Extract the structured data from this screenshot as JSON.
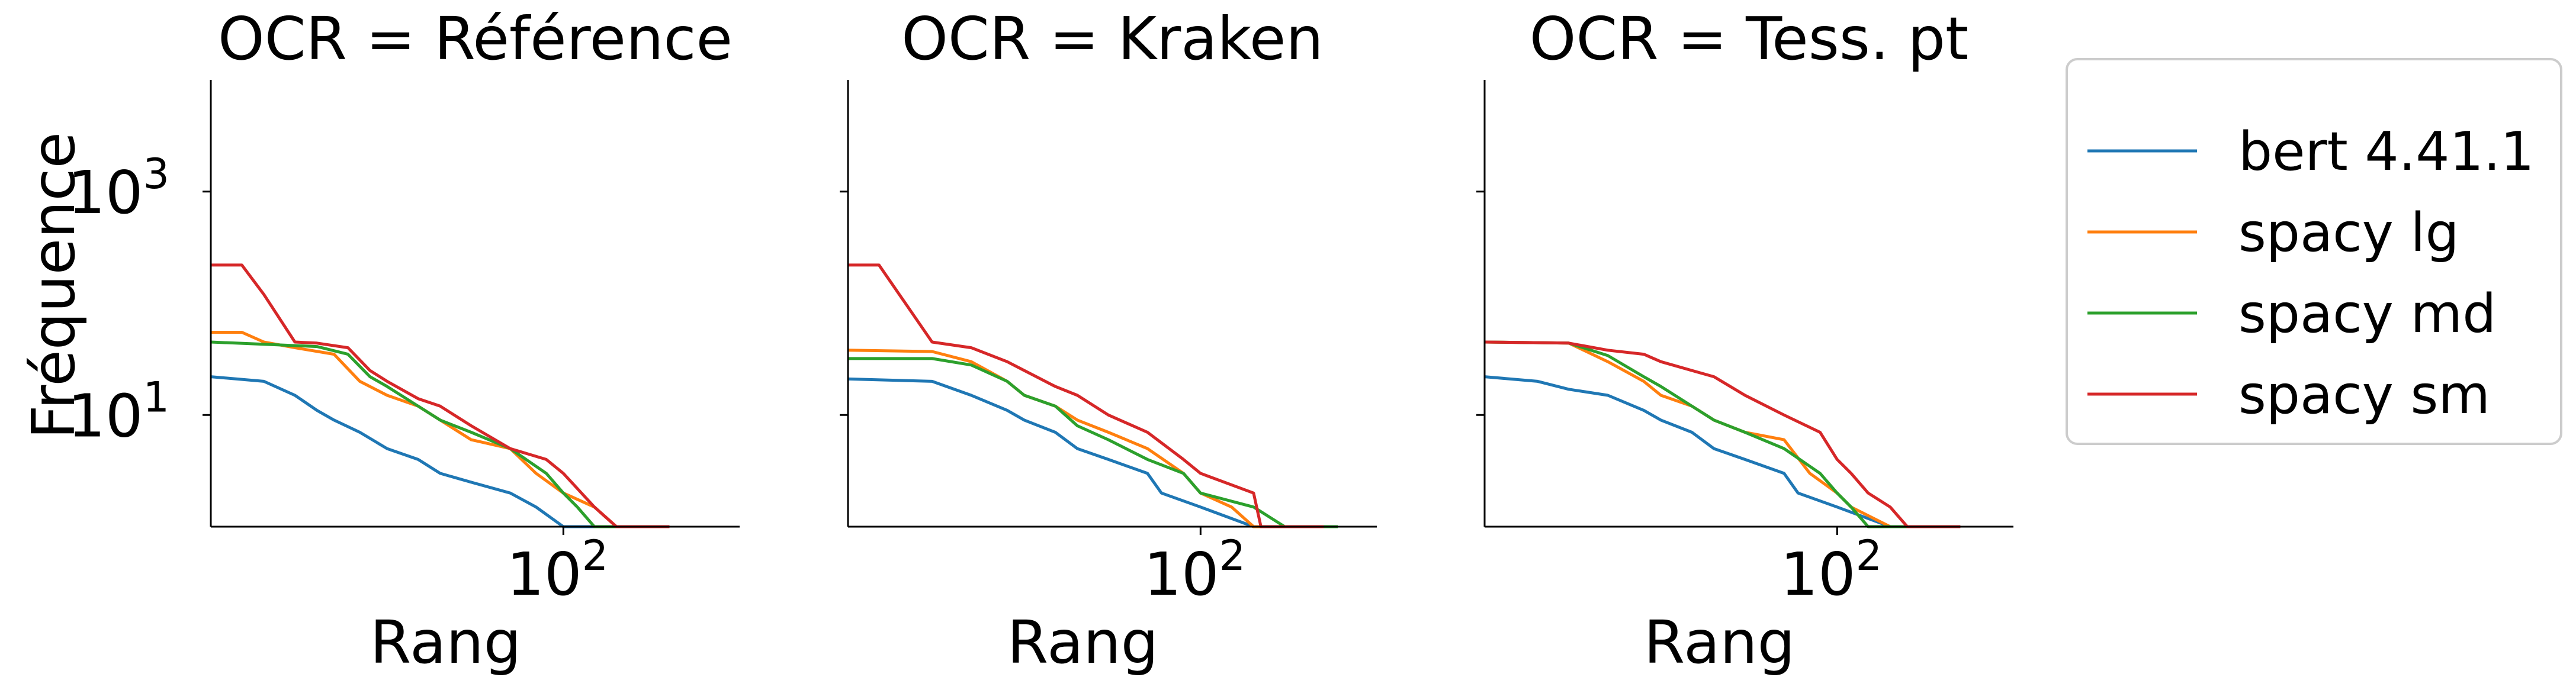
{
  "chart_data": [
    {
      "type": "line",
      "title": "OCR = Référence",
      "xlabel": "Rang",
      "ylabel": "Fréquence",
      "xscale": "log",
      "yscale": "log",
      "xlim": [
        1,
        1000
      ],
      "ylim": [
        1,
        10000
      ],
      "xticks": [
        {
          "base": "10",
          "exp": "2",
          "value": 100
        }
      ],
      "yticks": [
        {
          "base": "10",
          "exp": "3",
          "value": 1000
        },
        {
          "base": "10",
          "exp": "1",
          "value": 10
        }
      ],
      "series": [
        {
          "name": "bert 4.41.1",
          "color": "#1f77b4",
          "points": [
            [
              1,
              22
            ],
            [
              2,
              20
            ],
            [
              3,
              15
            ],
            [
              4,
              11
            ],
            [
              5,
              9
            ],
            [
              7,
              7
            ],
            [
              10,
              5
            ],
            [
              15,
              4
            ],
            [
              20,
              3
            ],
            [
              30,
              2.5
            ],
            [
              50,
              2
            ],
            [
              70,
              1.5
            ],
            [
              100,
              1
            ],
            [
              200,
              1
            ],
            [
              300,
              1
            ]
          ]
        },
        {
          "name": "spacy lg",
          "color": "#ff7f0e",
          "points": [
            [
              1,
              55
            ],
            [
              1.5,
              55
            ],
            [
              2,
              45
            ],
            [
              3,
              40
            ],
            [
              5,
              35
            ],
            [
              7,
              20
            ],
            [
              10,
              15
            ],
            [
              15,
              12
            ],
            [
              20,
              9
            ],
            [
              30,
              6
            ],
            [
              50,
              5
            ],
            [
              70,
              3
            ],
            [
              100,
              2
            ],
            [
              150,
              1.5
            ],
            [
              200,
              1
            ],
            [
              400,
              1
            ]
          ]
        },
        {
          "name": "spacy md",
          "color": "#2ca02c",
          "points": [
            [
              1,
              45
            ],
            [
              2,
              43
            ],
            [
              4,
              41
            ],
            [
              6,
              35
            ],
            [
              8,
              22
            ],
            [
              10,
              18
            ],
            [
              15,
              12
            ],
            [
              20,
              9
            ],
            [
              30,
              7
            ],
            [
              50,
              5
            ],
            [
              80,
              3
            ],
            [
              100,
              2
            ],
            [
              120,
              1.5
            ],
            [
              150,
              1
            ],
            [
              400,
              1
            ]
          ]
        },
        {
          "name": "spacy sm",
          "color": "#d62728",
          "points": [
            [
              1,
              220
            ],
            [
              1.5,
              220
            ],
            [
              2,
              120
            ],
            [
              3,
              45
            ],
            [
              4,
              44
            ],
            [
              6,
              40
            ],
            [
              8,
              25
            ],
            [
              10,
              20
            ],
            [
              15,
              14
            ],
            [
              20,
              12
            ],
            [
              30,
              8
            ],
            [
              50,
              5
            ],
            [
              80,
              4
            ],
            [
              100,
              3
            ],
            [
              150,
              1.5
            ],
            [
              200,
              1
            ],
            [
              400,
              1
            ]
          ]
        }
      ]
    },
    {
      "type": "line",
      "title": "OCR = Kraken",
      "xlabel": "Rang",
      "ylabel": "",
      "xscale": "log",
      "yscale": "log",
      "xlim": [
        1,
        1000
      ],
      "ylim": [
        1,
        10000
      ],
      "xticks": [
        {
          "base": "10",
          "exp": "2",
          "value": 100
        }
      ],
      "yticks": [],
      "series": [
        {
          "name": "bert 4.41.1",
          "color": "#1f77b4",
          "points": [
            [
              1,
              21
            ],
            [
              3,
              20
            ],
            [
              5,
              15
            ],
            [
              8,
              11
            ],
            [
              10,
              9
            ],
            [
              15,
              7
            ],
            [
              20,
              5
            ],
            [
              30,
              4
            ],
            [
              50,
              3
            ],
            [
              60,
              2
            ],
            [
              100,
              1.5
            ],
            [
              200,
              1
            ],
            [
              400,
              1
            ]
          ]
        },
        {
          "name": "spacy lg",
          "color": "#ff7f0e",
          "points": [
            [
              1,
              38
            ],
            [
              3,
              37
            ],
            [
              5,
              30
            ],
            [
              8,
              20
            ],
            [
              10,
              15
            ],
            [
              15,
              12
            ],
            [
              20,
              9
            ],
            [
              30,
              7
            ],
            [
              50,
              5
            ],
            [
              80,
              3
            ],
            [
              100,
              2
            ],
            [
              150,
              1.5
            ],
            [
              200,
              1
            ],
            [
              600,
              1
            ]
          ]
        },
        {
          "name": "spacy md",
          "color": "#2ca02c",
          "points": [
            [
              1,
              32
            ],
            [
              3,
              32
            ],
            [
              5,
              28
            ],
            [
              8,
              20
            ],
            [
              10,
              15
            ],
            [
              15,
              12
            ],
            [
              20,
              8
            ],
            [
              30,
              6
            ],
            [
              50,
              4
            ],
            [
              80,
              3
            ],
            [
              100,
              2
            ],
            [
              200,
              1.5
            ],
            [
              300,
              1
            ],
            [
              600,
              1
            ]
          ]
        },
        {
          "name": "spacy sm",
          "color": "#d62728",
          "points": [
            [
              1,
              220
            ],
            [
              1.5,
              220
            ],
            [
              3,
              45
            ],
            [
              5,
              40
            ],
            [
              8,
              30
            ],
            [
              10,
              25
            ],
            [
              15,
              18
            ],
            [
              20,
              15
            ],
            [
              30,
              10
            ],
            [
              50,
              7
            ],
            [
              80,
              4
            ],
            [
              100,
              3
            ],
            [
              200,
              2
            ],
            [
              220,
              1
            ],
            [
              500,
              1
            ]
          ]
        }
      ]
    },
    {
      "type": "line",
      "title": "OCR = Tess. pt",
      "xlabel": "Rang",
      "ylabel": "",
      "xscale": "log",
      "yscale": "log",
      "xlim": [
        1,
        1000
      ],
      "ylim": [
        1,
        10000
      ],
      "xticks": [
        {
          "base": "10",
          "exp": "2",
          "value": 100
        }
      ],
      "yticks": [],
      "series": [
        {
          "name": "bert 4.41.1",
          "color": "#1f77b4",
          "points": [
            [
              1,
              22
            ],
            [
              2,
              20
            ],
            [
              3,
              17
            ],
            [
              5,
              15
            ],
            [
              8,
              11
            ],
            [
              10,
              9
            ],
            [
              15,
              7
            ],
            [
              20,
              5
            ],
            [
              30,
              4
            ],
            [
              50,
              3
            ],
            [
              60,
              2
            ],
            [
              100,
              1.5
            ],
            [
              200,
              1
            ],
            [
              400,
              1
            ]
          ]
        },
        {
          "name": "spacy lg",
          "color": "#ff7f0e",
          "points": [
            [
              1,
              45
            ],
            [
              3,
              44
            ],
            [
              5,
              30
            ],
            [
              8,
              20
            ],
            [
              10,
              15
            ],
            [
              15,
              12
            ],
            [
              20,
              9
            ],
            [
              30,
              7
            ],
            [
              50,
              6
            ],
            [
              70,
              3
            ],
            [
              100,
              2
            ],
            [
              120,
              1.5
            ],
            [
              200,
              1
            ],
            [
              450,
              1
            ]
          ]
        },
        {
          "name": "spacy md",
          "color": "#2ca02c",
          "points": [
            [
              1,
              45
            ],
            [
              3,
              44
            ],
            [
              5,
              34
            ],
            [
              8,
              22
            ],
            [
              10,
              18
            ],
            [
              15,
              12
            ],
            [
              20,
              9
            ],
            [
              30,
              7
            ],
            [
              50,
              5
            ],
            [
              80,
              3
            ],
            [
              100,
              2
            ],
            [
              120,
              1.5
            ],
            [
              150,
              1
            ],
            [
              450,
              1
            ]
          ]
        },
        {
          "name": "spacy sm",
          "color": "#d62728",
          "points": [
            [
              1,
              45
            ],
            [
              3,
              44
            ],
            [
              5,
              38
            ],
            [
              8,
              35
            ],
            [
              10,
              30
            ],
            [
              15,
              25
            ],
            [
              20,
              22
            ],
            [
              30,
              15
            ],
            [
              50,
              10
            ],
            [
              80,
              7
            ],
            [
              100,
              4
            ],
            [
              120,
              3
            ],
            [
              150,
              2
            ],
            [
              200,
              1.5
            ],
            [
              250,
              1
            ],
            [
              500,
              1
            ]
          ]
        }
      ]
    }
  ],
  "legend": {
    "placement": "right",
    "entries": [
      {
        "label": "bert 4.41.1",
        "color": "#1f77b4"
      },
      {
        "label": "spacy lg",
        "color": "#ff7f0e"
      },
      {
        "label": "spacy md",
        "color": "#2ca02c"
      },
      {
        "label": "spacy sm",
        "color": "#d62728"
      }
    ]
  }
}
